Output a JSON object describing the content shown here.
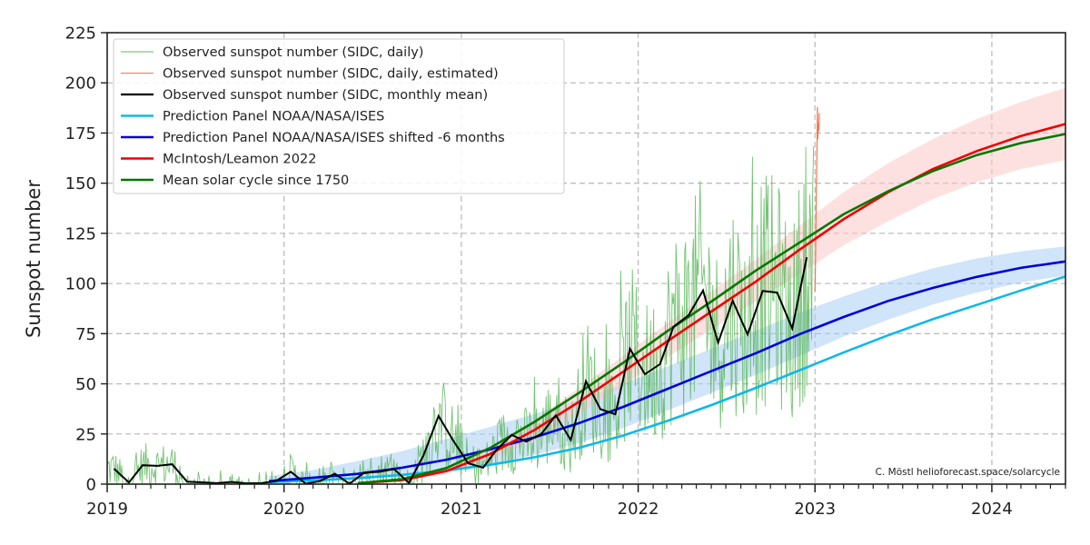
{
  "chart_data": {
    "type": "line",
    "title": "",
    "xlabel": "",
    "ylabel": "Sunspot number",
    "xlim": [
      "2019-01-01",
      "2024-06-01"
    ],
    "ylim": [
      0,
      225
    ],
    "x_ticks": [
      "2019",
      "2020",
      "2021",
      "2022",
      "2023",
      "2024"
    ],
    "y_ticks": [
      0,
      25,
      50,
      75,
      100,
      125,
      150,
      175,
      200,
      225
    ],
    "grid": true,
    "legend_position": "top-left",
    "credit": "C. Möstl  helioforecast.space/solarcycle",
    "colors": {
      "daily": "#5cb85c",
      "estimated": "#f07850",
      "monthly": "#000000",
      "noaa": "#10b8e8",
      "noaa_shifted": "#0000dd",
      "noaa_band": "#a9cdf5",
      "mcintosh": "#ee0000",
      "mcintosh_band": "#fbc9c9",
      "mean_cycle": "#007800"
    },
    "legend": [
      {
        "label": "Observed sunspot number (SIDC, daily)",
        "key": "daily"
      },
      {
        "label": "Observed sunspot number (SIDC, daily, estimated)",
        "key": "estimated"
      },
      {
        "label": "Observed sunspot number (SIDC, monthly mean)",
        "key": "monthly"
      },
      {
        "label": "Prediction Panel NOAA/NASA/ISES",
        "key": "noaa"
      },
      {
        "label": "Prediction Panel NOAA/NASA/ISES shifted -6 months",
        "key": "noaa_shifted"
      },
      {
        "label": "McIntosh/Leamon 2022",
        "key": "mcintosh"
      },
      {
        "label": "Mean solar cycle since 1750",
        "key": "mean_cycle"
      }
    ],
    "series": {
      "monthly_mean": {
        "x": [
          "2019-01-15",
          "2019-02-15",
          "2019-03-15",
          "2019-04-15",
          "2019-05-15",
          "2019-06-15",
          "2019-07-15",
          "2019-08-15",
          "2019-09-15",
          "2019-10-15",
          "2019-11-15",
          "2019-12-15",
          "2020-01-15",
          "2020-02-15",
          "2020-03-15",
          "2020-04-15",
          "2020-05-15",
          "2020-06-15",
          "2020-07-15",
          "2020-08-15",
          "2020-09-15",
          "2020-10-15",
          "2020-11-15",
          "2020-12-15",
          "2021-01-15",
          "2021-02-15",
          "2021-03-15",
          "2021-04-15",
          "2021-05-15",
          "2021-06-15",
          "2021-07-15",
          "2021-08-15",
          "2021-09-15",
          "2021-10-15",
          "2021-11-15",
          "2021-12-15",
          "2022-01-15",
          "2022-02-15",
          "2022-03-15",
          "2022-04-15",
          "2022-05-15",
          "2022-06-15",
          "2022-07-15",
          "2022-08-15",
          "2022-09-15",
          "2022-10-15",
          "2022-11-15",
          "2022-12-15"
        ],
        "y": [
          7.7,
          0.8,
          9.4,
          9.1,
          9.9,
          1.2,
          0.9,
          0.5,
          1.1,
          0.4,
          0.5,
          1.5,
          6.2,
          0.2,
          1.5,
          5.2,
          0.2,
          5.8,
          6.1,
          7.5,
          0.6,
          14.4,
          34.0,
          21.8,
          10.4,
          8.2,
          17.2,
          24.5,
          21.2,
          25.0,
          34.3,
          22.0,
          51.3,
          37.4,
          34.8,
          67.5,
          54.8,
          59.8,
          78.5,
          84.1,
          96.5,
          70.5,
          91.4,
          74.6,
          96.3,
          95.5,
          77.6,
          113.1
        ]
      },
      "noaa": {
        "x": [
          "2019-12-01",
          "2020-03-01",
          "2020-06-01",
          "2020-09-01",
          "2020-12-01",
          "2021-03-01",
          "2021-06-01",
          "2021-09-01",
          "2021-12-01",
          "2022-03-01",
          "2022-06-01",
          "2022-09-01",
          "2022-12-01",
          "2023-03-01",
          "2023-06-01",
          "2023-09-01",
          "2023-12-01",
          "2024-03-01",
          "2024-06-01"
        ],
        "y": [
          1.0,
          1.8,
          3.0,
          4.6,
          6.8,
          9.6,
          13.4,
          18.1,
          24.2,
          31.4,
          39.4,
          48.0,
          56.8,
          65.6,
          74.2,
          82.2,
          89.3,
          96.5,
          103.5
        ]
      },
      "noaa_shifted": {
        "x": [
          "2019-12-01",
          "2020-03-01",
          "2020-06-01",
          "2020-09-01",
          "2020-12-01",
          "2021-03-01",
          "2021-06-01",
          "2021-09-01",
          "2021-12-01",
          "2022-03-01",
          "2022-06-01",
          "2022-09-01",
          "2022-12-01",
          "2023-03-01",
          "2023-06-01",
          "2023-09-01",
          "2023-12-01",
          "2024-03-01",
          "2024-06-01"
        ],
        "y": [
          1.5,
          3.2,
          5.1,
          8.2,
          12.2,
          17.3,
          23.3,
          30.4,
          38.5,
          47.3,
          56.3,
          65.3,
          74.8,
          83.3,
          91.3,
          97.8,
          103.3,
          107.8,
          111.0
        ],
        "band_low": [
          0.5,
          1.5,
          2.5,
          4.0,
          6.5,
          10.0,
          14.5,
          20.5,
          28.0,
          36.5,
          45.5,
          54.5,
          64.0,
          73.5,
          82.0,
          89.5,
          95.5,
          100.5,
          104.0
        ],
        "band_high": [
          4.0,
          7.0,
          11.5,
          16.5,
          22.5,
          28.5,
          35.0,
          42.0,
          50.0,
          58.5,
          67.5,
          76.5,
          85.5,
          93.5,
          101.0,
          107.5,
          112.5,
          116.0,
          118.5
        ]
      },
      "mcintosh": {
        "x": [
          "2020-06-01",
          "2020-09-01",
          "2020-12-01",
          "2021-03-01",
          "2021-06-01",
          "2021-09-01",
          "2021-12-01",
          "2022-03-01",
          "2022-06-01",
          "2022-09-01",
          "2022-12-01",
          "2023-03-01",
          "2023-06-01",
          "2023-09-01",
          "2023-12-01",
          "2024-03-01",
          "2024-06-01"
        ],
        "y": [
          0.5,
          2.0,
          6.5,
          15.0,
          27.0,
          41.0,
          56.0,
          71.0,
          86.0,
          101.0,
          117.0,
          132.0,
          145.5,
          157.0,
          166.0,
          173.5,
          179.5
        ],
        "band_low": [
          0.3,
          1.5,
          5.0,
          12.0,
          22.0,
          35.0,
          49.0,
          63.0,
          77.0,
          91.0,
          105.0,
          119.0,
          131.0,
          142.0,
          150.5,
          157.0,
          161.5
        ],
        "band_high": [
          0.7,
          2.5,
          8.0,
          18.0,
          32.0,
          48.0,
          64.0,
          80.0,
          96.0,
          112.0,
          129.0,
          145.5,
          160.0,
          172.0,
          182.0,
          190.5,
          197.5
        ]
      },
      "mean_cycle": {
        "x": [
          "2020-06-01",
          "2020-09-01",
          "2020-12-01",
          "2021-03-01",
          "2021-06-01",
          "2021-09-01",
          "2021-12-01",
          "2022-03-01",
          "2022-06-01",
          "2022-09-01",
          "2022-12-01",
          "2023-03-01",
          "2023-06-01",
          "2023-09-01",
          "2023-12-01",
          "2024-03-01",
          "2024-06-01"
        ],
        "y": [
          0.5,
          2.5,
          8.0,
          18.0,
          31.0,
          45.5,
          60.5,
          76.0,
          91.0,
          106.5,
          120.5,
          134.5,
          146.0,
          156.0,
          164.0,
          170.0,
          174.5
        ]
      },
      "daily_estimated": {
        "x": [
          "2023-01-01",
          "2023-01-02",
          "2023-01-03",
          "2023-01-04",
          "2023-01-05",
          "2023-01-06",
          "2023-01-07",
          "2023-01-08",
          "2023-01-09",
          "2023-01-10"
        ],
        "y": [
          96,
          110,
          130,
          150,
          165,
          188,
          172,
          180,
          176,
          185
        ]
      }
    }
  }
}
